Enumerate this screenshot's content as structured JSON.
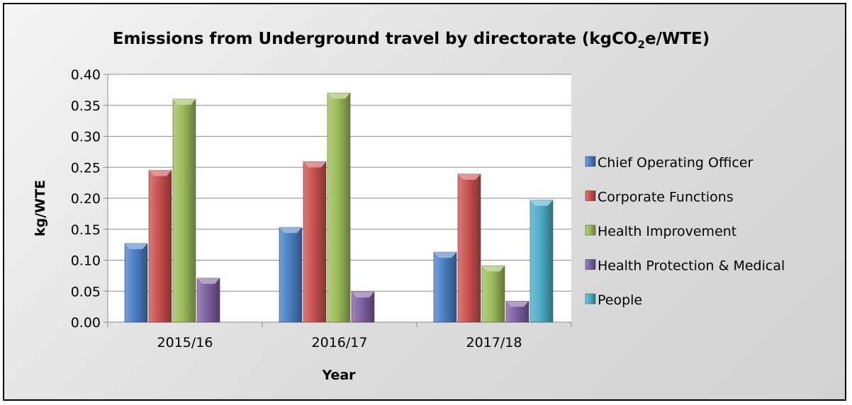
{
  "chart_data": {
    "type": "bar",
    "title": "Emissions from Underground travel by directorate (kgCO",
    "title_sub": "2",
    "title_end": "e/WTE)",
    "xlabel": "Year",
    "ylabel": "kg/WTE",
    "categories": [
      "2015/16",
      "2016/17",
      "2017/18"
    ],
    "ylim": [
      0,
      0.4
    ],
    "yticks": [
      "0.00",
      "0.05",
      "0.10",
      "0.15",
      "0.20",
      "0.25",
      "0.30",
      "0.35",
      "0.40"
    ],
    "grid": true,
    "legend_position": "right",
    "series": [
      {
        "name": "Chief Operating Officer",
        "color": "#4a7ec4",
        "values": [
          0.127,
          0.153,
          0.113
        ]
      },
      {
        "name": "Corporate Functions",
        "color": "#c8504d",
        "values": [
          0.245,
          0.259,
          0.239
        ]
      },
      {
        "name": "Health Improvement",
        "color": "#9bbb59",
        "values": [
          0.36,
          0.37,
          0.091
        ]
      },
      {
        "name": "Health Protection & Medical",
        "color": "#7d5fa0",
        "values": [
          0.071,
          0.049,
          0.034
        ]
      },
      {
        "name": "People",
        "color": "#4bacc6",
        "values": [
          null,
          null,
          0.197
        ]
      }
    ]
  }
}
